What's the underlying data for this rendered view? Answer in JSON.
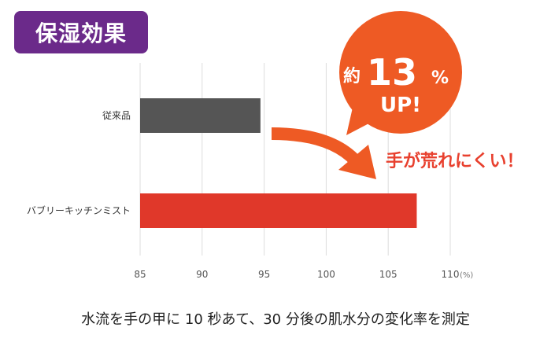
{
  "title": "保湿効果",
  "caption": "水流を手の甲に 10 秒あて、30 分後の肌水分の変化率を測定",
  "callout": {
    "prefix": "約",
    "number": "13",
    "percent": "%",
    "up": "UP!",
    "color": "#ee5a24"
  },
  "slogan": "手が荒れにくい！",
  "chart_data": {
    "type": "bar",
    "orientation": "horizontal",
    "categories": [
      "従来品",
      "バブリーキッチンミスト"
    ],
    "values": [
      94.7,
      107.3
    ],
    "colors": [
      "#555555",
      "#e0382a"
    ],
    "xlim": [
      85,
      110
    ],
    "xticks": [
      85,
      90,
      95,
      100,
      105,
      110
    ],
    "x_unit": "(%)",
    "grid": true
  }
}
